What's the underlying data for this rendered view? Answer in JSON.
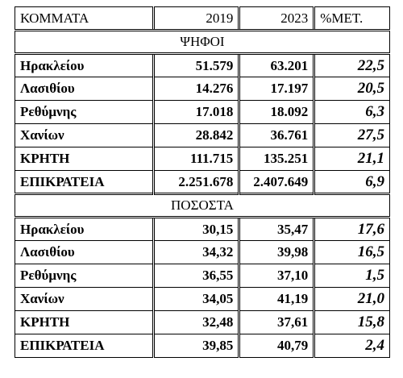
{
  "table": {
    "header": [
      "ΚΟΜΜΑΤΑ",
      "2019",
      "2023",
      "%ΜΕΤ."
    ],
    "sections": [
      {
        "title": "ΨΗΦΟΙ",
        "rows": [
          [
            "Ηρακλείου",
            "51.579",
            "63.201",
            "22,5"
          ],
          [
            "Λασιθίου",
            "14.276",
            "17.197",
            "20,5"
          ],
          [
            "Ρεθύμνης",
            "17.018",
            "18.092",
            "6,3"
          ],
          [
            "Χανίων",
            "28.842",
            "36.761",
            "27,5"
          ],
          [
            "ΚΡΗΤΗ",
            "111.715",
            "135.251",
            "21,1"
          ],
          [
            "ΕΠΙΚΡΑΤΕΙΑ",
            "2.251.678",
            "2.407.649",
            "6,9"
          ]
        ]
      },
      {
        "title": "ΠΟΣΟΣΤΑ",
        "rows": [
          [
            "Ηρακλείου",
            "30,15",
            "35,47",
            "17,6"
          ],
          [
            "Λασιθίου",
            "34,32",
            "39,98",
            "16,5"
          ],
          [
            "Ρεθύμνης",
            "36,55",
            "37,10",
            "1,5"
          ],
          [
            "Χανίων",
            "34,05",
            "41,19",
            "21,0"
          ],
          [
            "ΚΡΗΤΗ",
            "32,48",
            "37,61",
            "15,8"
          ],
          [
            "ΕΠΙΚΡΑΤΕΙΑ",
            "39,85",
            "40,79",
            "2,4"
          ]
        ]
      }
    ]
  }
}
